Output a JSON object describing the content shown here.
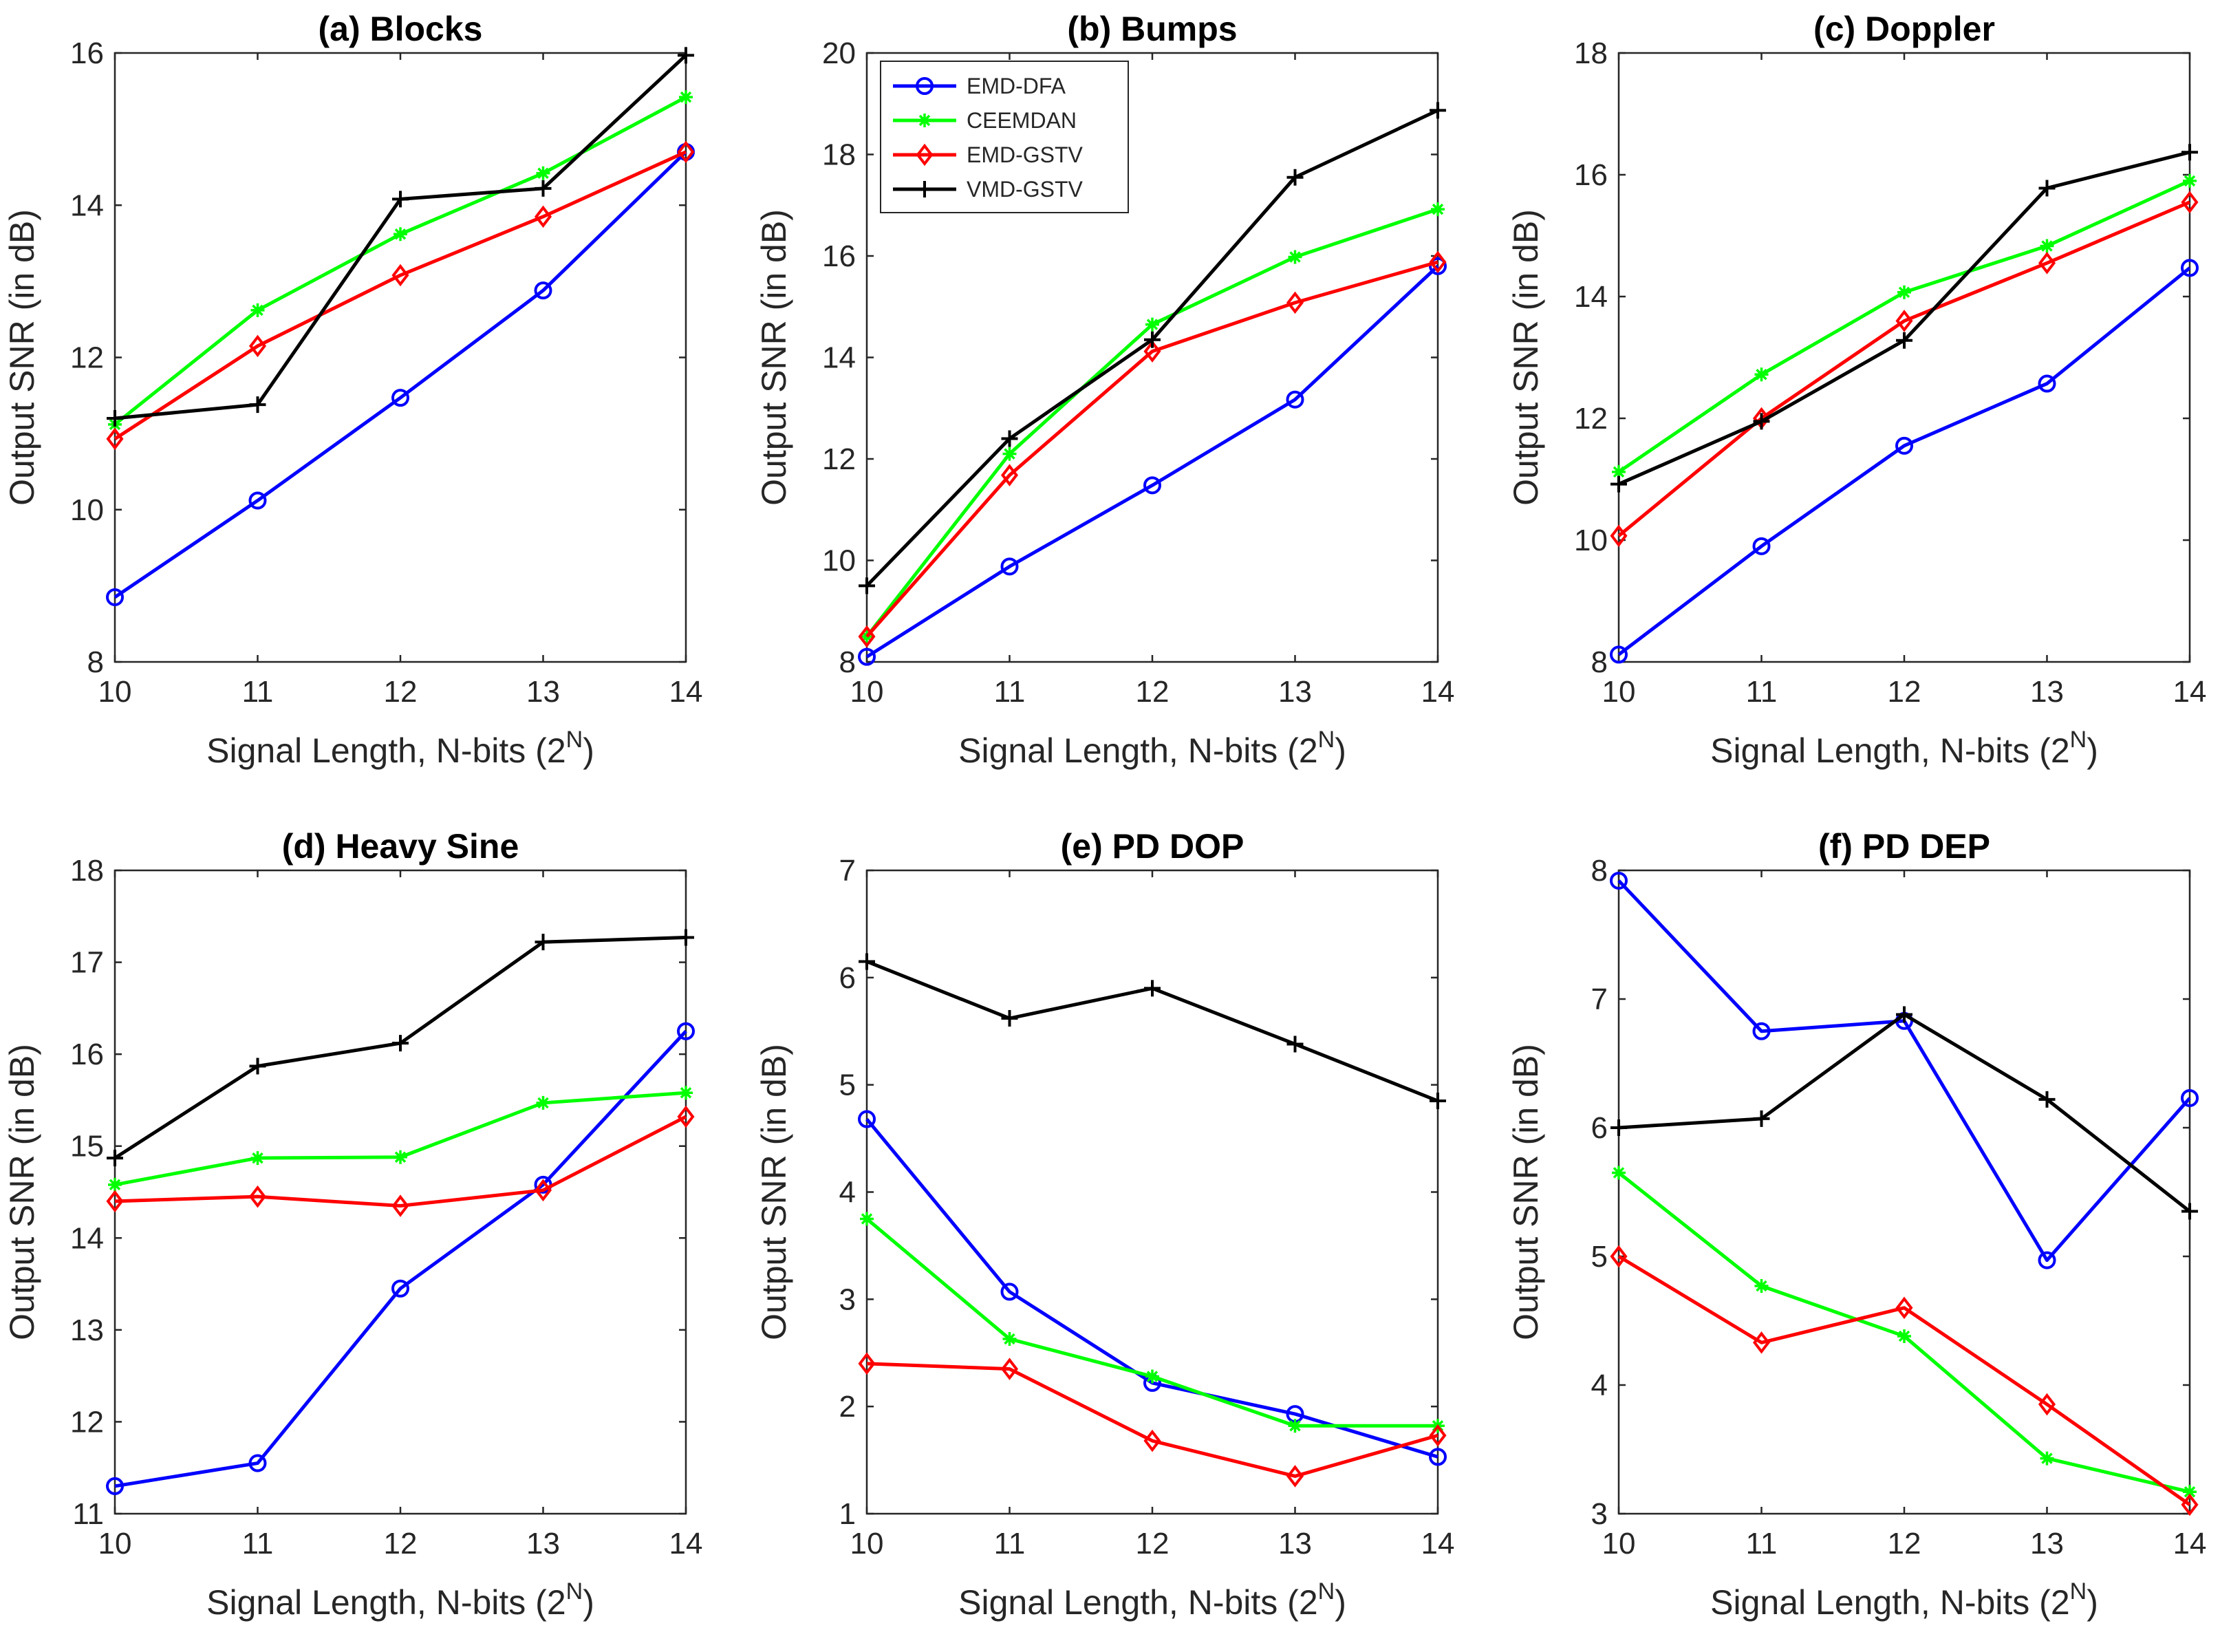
{
  "chart_data": [
    {
      "type": "line",
      "title": "(a) Blocks",
      "xlabel": "Signal Length, N-bits (2",
      "xlabel_sup": "N",
      "xlabel_end": ")",
      "ylabel": "Output SNR (in dB)",
      "x": [
        10,
        11,
        12,
        13,
        14
      ],
      "xlim": [
        10,
        14
      ],
      "ylim": [
        8,
        16
      ],
      "yticks": [
        8,
        10,
        12,
        14,
        16
      ],
      "series": [
        {
          "name": "EMD-DFA",
          "values": [
            8.85,
            10.12,
            11.47,
            12.88,
            14.7
          ]
        },
        {
          "name": "CEEMDAN",
          "values": [
            11.12,
            12.62,
            13.62,
            14.42,
            15.42
          ]
        },
        {
          "name": "EMD-GSTV",
          "values": [
            10.93,
            12.15,
            13.08,
            13.85,
            14.7
          ]
        },
        {
          "name": "VMD-GSTV",
          "values": [
            11.2,
            11.38,
            14.08,
            14.22,
            15.97
          ]
        }
      ]
    },
    {
      "type": "line",
      "title": "(b) Bumps",
      "xlabel": "Signal Length, N-bits (2",
      "xlabel_sup": "N",
      "xlabel_end": ")",
      "ylabel": "Output SNR (in dB)",
      "x": [
        10,
        11,
        12,
        13,
        14
      ],
      "xlim": [
        10,
        14
      ],
      "ylim": [
        8,
        20
      ],
      "yticks": [
        8,
        10,
        12,
        14,
        16,
        18,
        20
      ],
      "legend": "top-left",
      "series": [
        {
          "name": "EMD-DFA",
          "values": [
            8.1,
            9.88,
            11.48,
            13.17,
            15.8
          ]
        },
        {
          "name": "CEEMDAN",
          "values": [
            8.5,
            12.1,
            14.65,
            15.98,
            16.92
          ]
        },
        {
          "name": "EMD-GSTV",
          "values": [
            8.5,
            11.68,
            14.12,
            15.08,
            15.88
          ]
        },
        {
          "name": "VMD-GSTV",
          "values": [
            9.5,
            12.4,
            14.35,
            17.55,
            18.87
          ]
        }
      ]
    },
    {
      "type": "line",
      "title": "(c) Doppler",
      "xlabel": "Signal Length, N-bits (2",
      "xlabel_sup": "N",
      "xlabel_end": ")",
      "ylabel": "Output SNR (in dB)",
      "x": [
        10,
        11,
        12,
        13,
        14
      ],
      "xlim": [
        10,
        14
      ],
      "ylim": [
        8,
        18
      ],
      "yticks": [
        8,
        10,
        12,
        14,
        16,
        18
      ],
      "series": [
        {
          "name": "EMD-DFA",
          "values": [
            8.12,
            9.9,
            11.55,
            12.57,
            14.47
          ]
        },
        {
          "name": "CEEMDAN",
          "values": [
            11.12,
            12.72,
            14.07,
            14.83,
            15.9
          ]
        },
        {
          "name": "EMD-GSTV",
          "values": [
            10.07,
            12.0,
            13.6,
            14.55,
            15.55
          ]
        },
        {
          "name": "VMD-GSTV",
          "values": [
            10.92,
            11.95,
            13.28,
            15.78,
            16.37
          ]
        }
      ]
    },
    {
      "type": "line",
      "title": "(d) Heavy Sine",
      "xlabel": "Signal Length, N-bits (2",
      "xlabel_sup": "N",
      "xlabel_end": ")",
      "ylabel": "Output SNR (in dB)",
      "x": [
        10,
        11,
        12,
        13,
        14
      ],
      "xlim": [
        10,
        14
      ],
      "ylim": [
        11,
        18
      ],
      "yticks": [
        11,
        12,
        13,
        14,
        15,
        16,
        17,
        18
      ],
      "series": [
        {
          "name": "EMD-DFA",
          "values": [
            11.3,
            11.55,
            13.45,
            14.58,
            16.25
          ]
        },
        {
          "name": "CEEMDAN",
          "values": [
            14.58,
            14.87,
            14.88,
            15.47,
            15.58
          ]
        },
        {
          "name": "EMD-GSTV",
          "values": [
            14.4,
            14.45,
            14.35,
            14.52,
            15.32
          ]
        },
        {
          "name": "VMD-GSTV",
          "values": [
            14.87,
            15.87,
            16.12,
            17.22,
            17.27
          ]
        }
      ]
    },
    {
      "type": "line",
      "title": "(e) PD DOP",
      "xlabel": "Signal Length, N-bits (2",
      "xlabel_sup": "N",
      "xlabel_end": ")",
      "ylabel": "Output SNR (in dB)",
      "x": [
        10,
        11,
        12,
        13,
        14
      ],
      "xlim": [
        10,
        14
      ],
      "ylim": [
        1,
        7
      ],
      "yticks": [
        1,
        2,
        3,
        4,
        5,
        6,
        7
      ],
      "series": [
        {
          "name": "EMD-DFA",
          "values": [
            4.68,
            3.07,
            2.22,
            1.93,
            1.53
          ]
        },
        {
          "name": "CEEMDAN",
          "values": [
            3.75,
            2.63,
            2.28,
            1.82,
            1.82
          ]
        },
        {
          "name": "EMD-GSTV",
          "values": [
            2.4,
            2.35,
            1.68,
            1.35,
            1.73
          ]
        },
        {
          "name": "VMD-GSTV",
          "values": [
            6.15,
            5.62,
            5.9,
            5.38,
            4.85
          ]
        }
      ]
    },
    {
      "type": "line",
      "title": "(f) PD DEP",
      "xlabel": "Signal Length, N-bits (2",
      "xlabel_sup": "N",
      "xlabel_end": ")",
      "ylabel": "Output SNR (in dB)",
      "x": [
        10,
        11,
        12,
        13,
        14
      ],
      "xlim": [
        10,
        14
      ],
      "ylim": [
        3,
        8
      ],
      "yticks": [
        3,
        4,
        5,
        6,
        7,
        8
      ],
      "series": [
        {
          "name": "EMD-DFA",
          "values": [
            7.92,
            6.75,
            6.83,
            4.97,
            6.23
          ]
        },
        {
          "name": "CEEMDAN",
          "values": [
            5.65,
            4.77,
            4.38,
            3.43,
            3.17
          ]
        },
        {
          "name": "EMD-GSTV",
          "values": [
            5.0,
            4.33,
            4.6,
            3.85,
            3.07
          ]
        },
        {
          "name": "VMD-GSTV",
          "values": [
            6.0,
            6.07,
            6.88,
            6.22,
            5.35
          ]
        }
      ]
    }
  ],
  "series_styles": {
    "EMD-DFA": {
      "color": "#0000ff",
      "marker": "circle"
    },
    "CEEMDAN": {
      "color": "#00ff00",
      "marker": "asterisk"
    },
    "EMD-GSTV": {
      "color": "#ff0000",
      "marker": "diamond"
    },
    "VMD-GSTV": {
      "color": "#000000",
      "marker": "plus"
    }
  }
}
